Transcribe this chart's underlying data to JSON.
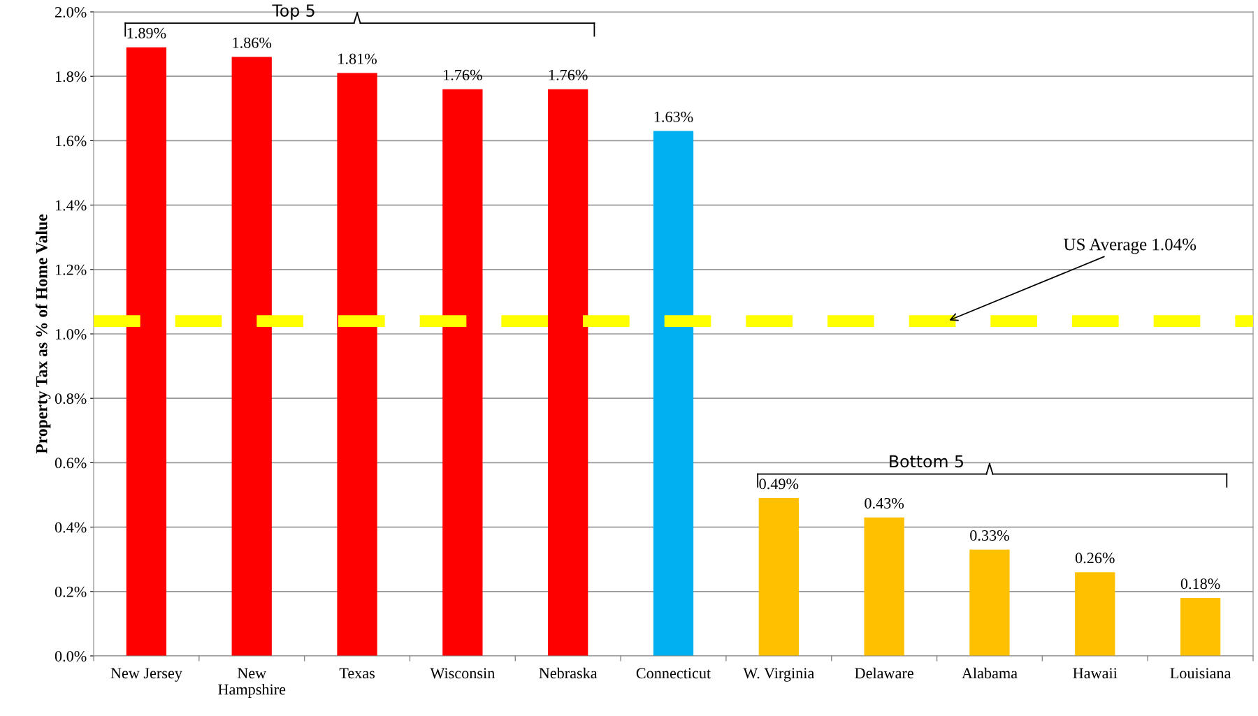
{
  "chart_data": {
    "type": "bar",
    "ylabel": "Property Tax as % of Home Value",
    "categories": [
      "New Jersey",
      "New\nHampshire",
      "Texas",
      "Wisconsin",
      "Nebraska",
      "Connecticut",
      "W. Virginia",
      "Delaware",
      "Alabama",
      "Hawaii",
      "Louisiana"
    ],
    "values": [
      1.89,
      1.86,
      1.81,
      1.76,
      1.76,
      1.63,
      0.49,
      0.43,
      0.33,
      0.26,
      0.18
    ],
    "value_labels": [
      "1.89%",
      "1.86%",
      "1.81%",
      "1.76%",
      "1.76%",
      "1.63%",
      "0.49%",
      "0.43%",
      "0.33%",
      "0.26%",
      "0.18%"
    ],
    "colors": [
      "#ff0000",
      "#ff0000",
      "#ff0000",
      "#ff0000",
      "#ff0000",
      "#00b0f0",
      "#ffc000",
      "#ffc000",
      "#ffc000",
      "#ffc000",
      "#ffc000"
    ],
    "ylim": [
      0,
      2.0
    ],
    "yticks": [
      {
        "value": 0,
        "label": "0.0%"
      },
      {
        "value": 0.2,
        "label": "0.2%"
      },
      {
        "value": 0.4,
        "label": "0.4%"
      },
      {
        "value": 0.6,
        "label": "0.6%"
      },
      {
        "value": 0.8,
        "label": "0.8%"
      },
      {
        "value": 1.0,
        "label": "1.0%"
      },
      {
        "value": 1.2,
        "label": "1.2%"
      },
      {
        "value": 1.4,
        "label": "1.4%"
      },
      {
        "value": 1.6,
        "label": "1.6%"
      },
      {
        "value": 1.8,
        "label": "1.8%"
      },
      {
        "value": 2.0,
        "label": "2.0%"
      }
    ],
    "grid": "y",
    "ref_lines": [
      {
        "axis": "y",
        "value": 1.04,
        "label": "US Average 1.04%",
        "color": "#ffff00",
        "line_style": "dashed"
      }
    ],
    "annotations": [
      "Top 5",
      "Bottom 5"
    ]
  }
}
